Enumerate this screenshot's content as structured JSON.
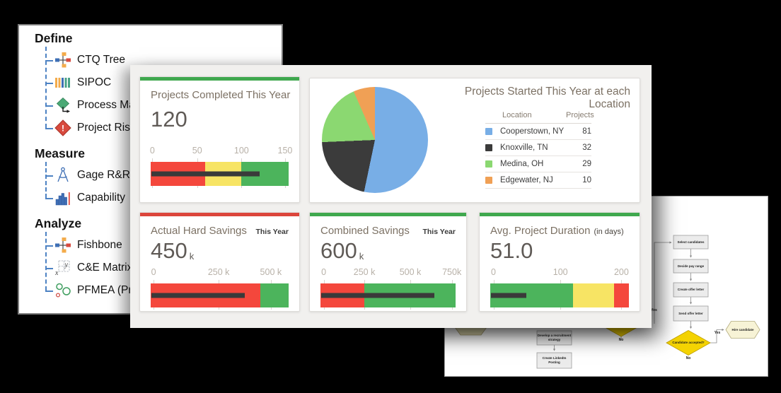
{
  "toolbox": {
    "sections": [
      {
        "title": "Define",
        "items": [
          {
            "label": "CTQ Tree",
            "icon": "ctq-tree-icon"
          },
          {
            "label": "SIPOC",
            "icon": "sipoc-icon"
          },
          {
            "label": "Process Map",
            "icon": "process-map-icon"
          },
          {
            "label": "Project Risk",
            "icon": "project-risk-icon"
          }
        ]
      },
      {
        "title": "Measure",
        "items": [
          {
            "label": "Gage R&R",
            "icon": "gage-rr-icon"
          },
          {
            "label": "Capability",
            "icon": "capability-icon"
          }
        ]
      },
      {
        "title": "Analyze",
        "items": [
          {
            "label": "Fishbone",
            "icon": "fishbone-icon"
          },
          {
            "label": "C&E Matrix",
            "icon": "ce-matrix-icon"
          },
          {
            "label": "PFMEA (Process FMEA)",
            "icon": "pfmea-icon"
          }
        ]
      }
    ]
  },
  "chart_data": [
    {
      "id": "projects_completed",
      "type": "bullet",
      "title": "Projects Completed This Year",
      "subtitle": "",
      "value_text": "120",
      "unit": "",
      "accent": "#3fa84e",
      "range": [
        0,
        155
      ],
      "ticks": [
        {
          "label": "0",
          "value": 0,
          "pct": 1.2
        },
        {
          "label": "50",
          "value": 50,
          "pct": 33.7
        },
        {
          "label": "100",
          "value": 100,
          "pct": 65.8
        },
        {
          "label": "150",
          "value": 150,
          "pct": 97.4
        }
      ],
      "zones": [
        {
          "name": "red",
          "color": "#f4473c",
          "from_value": 0,
          "to_value": 60,
          "from_pct": 0,
          "to_pct": 39.3
        },
        {
          "name": "yellow",
          "color": "#f7e464",
          "from_value": 60,
          "to_value": 100,
          "from_pct": 39.3,
          "to_pct": 65.8
        },
        {
          "name": "green",
          "color": "#4cb45c",
          "from_value": 100,
          "to_value": 155,
          "from_pct": 65.8,
          "to_pct": 100
        }
      ],
      "bar": {
        "value": 120,
        "pct": 79,
        "color": "#3a3a3a"
      }
    },
    {
      "id": "projects_by_location",
      "type": "pie",
      "title": "Projects Started This Year at each Location",
      "legend_headers": [
        "Location",
        "Projects"
      ],
      "start": "top",
      "direction": "clockwise",
      "total": 152,
      "slices": [
        {
          "label": "Cooperstown, NY",
          "value": 81,
          "color": "#78aee6"
        },
        {
          "label": "Knoxville, TN",
          "value": 32,
          "color": "#3b3b3b"
        },
        {
          "label": "Medina, OH",
          "value": 29,
          "color": "#8bd871"
        },
        {
          "label": "Edgewater, NJ",
          "value": 10,
          "color": "#f0a055"
        }
      ]
    },
    {
      "id": "actual_hard_savings",
      "type": "bullet",
      "title": "Actual Hard Savings",
      "subtitle": "This Year",
      "value_text": "450",
      "unit": "k",
      "accent": "#dc453b",
      "range": [
        0,
        575000
      ],
      "ticks": [
        {
          "label": "0",
          "value": 0,
          "pct": 2.1
        },
        {
          "label": "250 k",
          "value": 250000,
          "pct": 49.3
        },
        {
          "label": "500 k",
          "value": 500000,
          "pct": 87.1
        }
      ],
      "zones": [
        {
          "name": "red",
          "color": "#f4473c",
          "from_value": 0,
          "to_value": 455000,
          "from_pct": 0,
          "to_pct": 79.4
        },
        {
          "name": "green",
          "color": "#4cb45c",
          "from_value": 455000,
          "to_value": 575000,
          "from_pct": 79.4,
          "to_pct": 100
        }
      ],
      "bar": {
        "value": 450000,
        "pct": 68.2,
        "color": "#3a3a3a"
      }
    },
    {
      "id": "combined_savings",
      "type": "bullet",
      "title": "Combined Savings",
      "subtitle": "This Year",
      "value_text": "600",
      "unit": "k",
      "accent": "#3fa84e",
      "range": [
        0,
        772000
      ],
      "ticks": [
        {
          "label": "0",
          "value": 0,
          "pct": 2.4
        },
        {
          "label": "250 k",
          "value": 250000,
          "pct": 32.5
        },
        {
          "label": "500 k",
          "value": 500000,
          "pct": 66.5
        },
        {
          "label": "750k",
          "value": 750000,
          "pct": 97.2
        }
      ],
      "zones": [
        {
          "name": "red",
          "color": "#f4473c",
          "from_value": 0,
          "to_value": 250000,
          "from_pct": 0,
          "to_pct": 32.5
        },
        {
          "name": "green",
          "color": "#4cb45c",
          "from_value": 250000,
          "to_value": 772000,
          "from_pct": 32.5,
          "to_pct": 100
        }
      ],
      "bar": {
        "value": 600000,
        "pct": 84.2,
        "color": "#3a3a3a"
      }
    },
    {
      "id": "avg_project_duration",
      "type": "bullet",
      "title": "Avg. Project Duration",
      "subtitle": "(in days)",
      "value_text": "51.0",
      "unit": "",
      "accent": "#3fa84e",
      "range": [
        0,
        211
      ],
      "ticks": [
        {
          "label": "0",
          "value": 0,
          "pct": 2.3
        },
        {
          "label": "100",
          "value": 100,
          "pct": 50.6
        },
        {
          "label": "200",
          "value": 200,
          "pct": 94.6
        }
      ],
      "zones": [
        {
          "name": "green",
          "color": "#4cb45c",
          "from_value": 0,
          "to_value": 124,
          "from_pct": 0,
          "to_pct": 59.6
        },
        {
          "name": "yellow",
          "color": "#f7e464",
          "from_value": 124,
          "to_value": 188,
          "from_pct": 59.6,
          "to_pct": 89.3
        },
        {
          "name": "red",
          "color": "#f4473c",
          "from_value": 188,
          "to_value": 211,
          "from_pct": 89.3,
          "to_pct": 100
        }
      ],
      "bar": {
        "value": 51.0,
        "pct": 25.9,
        "color": "#3a3a3a"
      }
    }
  ],
  "flowchart": {
    "process_steps": [
      "Select candidates",
      "Decide pay range",
      "Create offer letter",
      "Send offer letter"
    ],
    "decision": "Candidate accepted?",
    "decision_yes": "Yes",
    "decision_no": "No",
    "terminal": "Hire candidate",
    "incoming_label": "Yes",
    "partial_boxes": [
      "Develop a recruitment strategy",
      "Create LinkedIn Posting"
    ],
    "partial_no": "No"
  }
}
